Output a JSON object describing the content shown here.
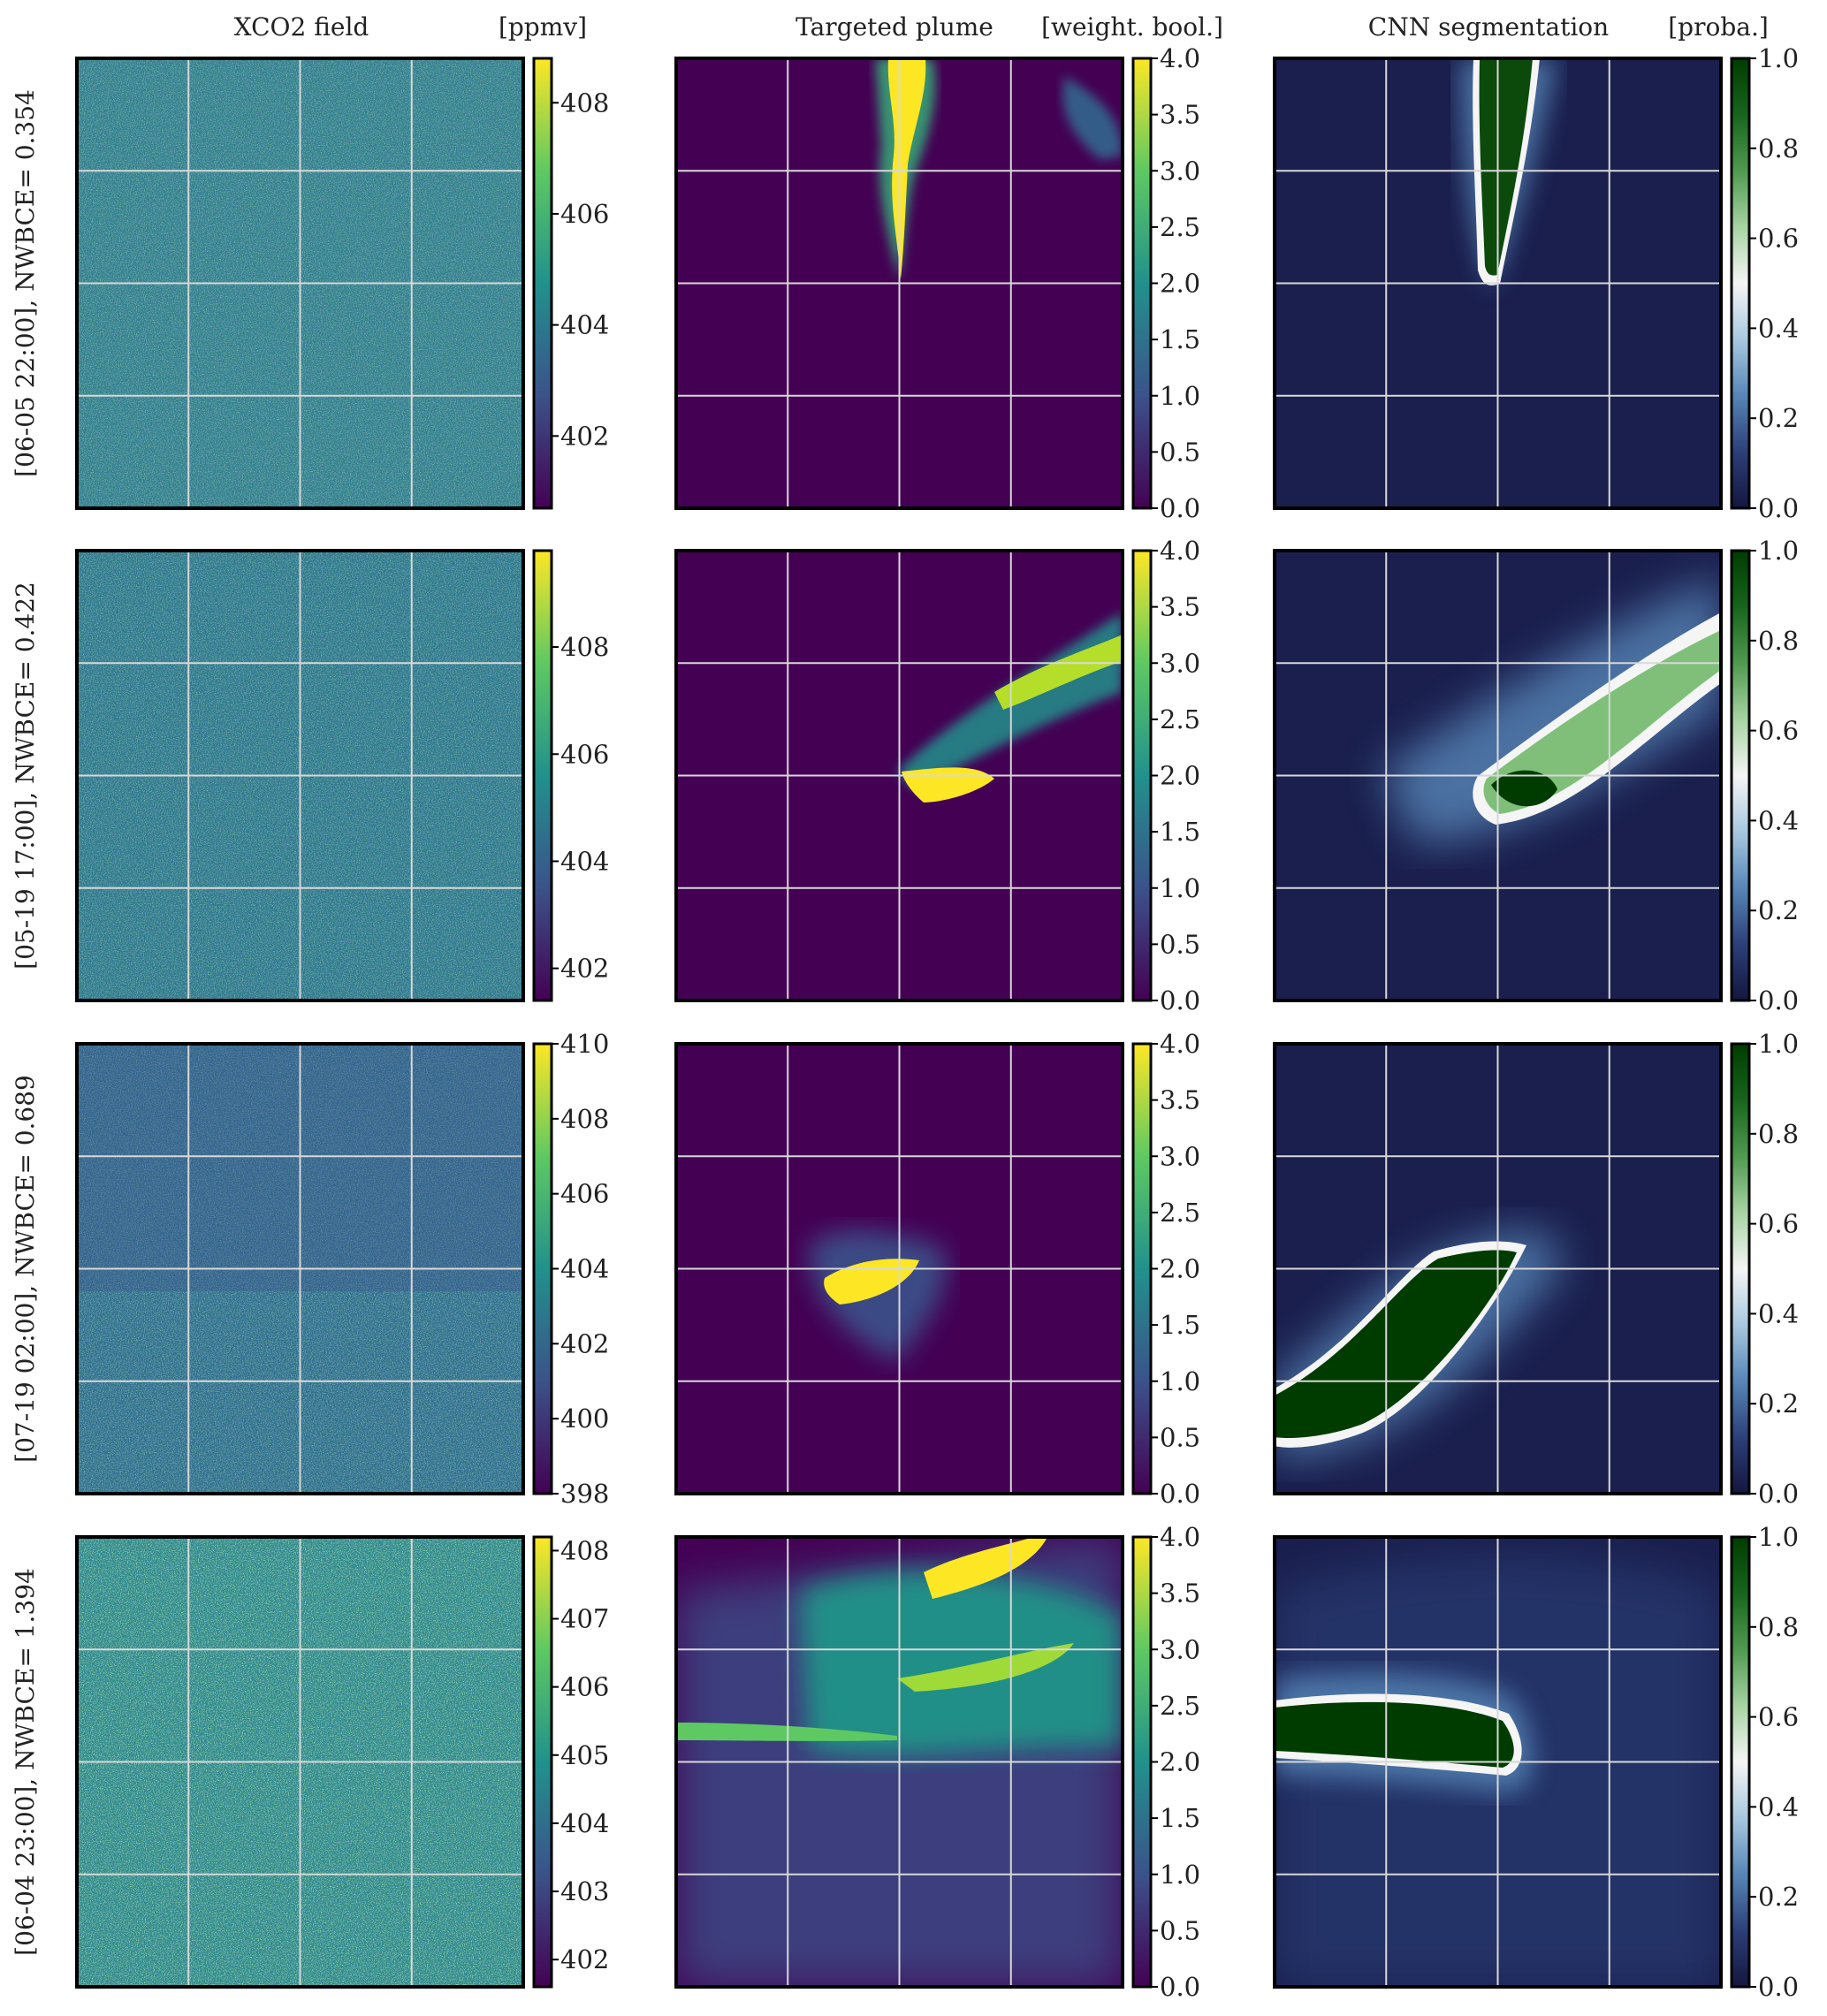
{
  "columns": [
    {
      "title": "XCO2 field",
      "unit": "[ppmv]",
      "colormap": "viridis"
    },
    {
      "title": "Targeted plume",
      "unit": "[weight. bool.]",
      "colormap": "viridis"
    },
    {
      "title": "CNN segmentation",
      "unit": "[proba.]",
      "colormap": "blue-white-green"
    }
  ],
  "colormaps": {
    "viridis": [
      "#440154",
      "#3b528b",
      "#21918c",
      "#5ec962",
      "#fde725"
    ],
    "blue-white-green": [
      "#14163f",
      "#2c3f78",
      "#5686b7",
      "#a8c8e0",
      "#f5f5f5",
      "#a7d3a3",
      "#4f9a4f",
      "#17651d",
      "#003c00"
    ]
  },
  "rows": [
    {
      "label": "[06-05 22:00], NWBCE= 0.354",
      "xco2_ticks": [
        "402",
        "404",
        "406",
        "408"
      ],
      "xco2_range": [
        400.7,
        408.8
      ],
      "plume_ticks": [
        "0.0",
        "0.5",
        "1.0",
        "1.5",
        "2.0",
        "2.5",
        "3.0",
        "3.5",
        "4.0"
      ],
      "seg_ticks": [
        "0.0",
        "0.2",
        "0.4",
        "0.6",
        "0.8",
        "1.0"
      ]
    },
    {
      "label": "[05-19 17:00], NWBCE= 0.422",
      "xco2_ticks": [
        "402",
        "404",
        "406",
        "408"
      ],
      "xco2_range": [
        401.4,
        409.8
      ],
      "plume_ticks": [
        "0.0",
        "0.5",
        "1.0",
        "1.5",
        "2.0",
        "2.5",
        "3.0",
        "3.5",
        "4.0"
      ],
      "seg_ticks": [
        "0.0",
        "0.2",
        "0.4",
        "0.6",
        "0.8",
        "1.0"
      ]
    },
    {
      "label": "[07-19 02:00], NWBCE= 0.689",
      "xco2_ticks": [
        "398",
        "400",
        "402",
        "404",
        "406",
        "408",
        "410"
      ],
      "xco2_range": [
        398.0,
        410.0
      ],
      "plume_ticks": [
        "0.0",
        "0.5",
        "1.0",
        "1.5",
        "2.0",
        "2.5",
        "3.0",
        "3.5",
        "4.0"
      ],
      "seg_ticks": [
        "0.0",
        "0.2",
        "0.4",
        "0.6",
        "0.8",
        "1.0"
      ]
    },
    {
      "label": "[06-04 23:00], NWBCE= 1.394",
      "xco2_ticks": [
        "402",
        "403",
        "404",
        "405",
        "406",
        "407",
        "408"
      ],
      "xco2_range": [
        401.6,
        408.2
      ],
      "plume_ticks": [
        "0.0",
        "0.5",
        "1.0",
        "1.5",
        "2.0",
        "2.5",
        "3.0",
        "3.5",
        "4.0"
      ],
      "seg_ticks": [
        "0.0",
        "0.2",
        "0.4",
        "0.6",
        "0.8",
        "1.0"
      ]
    }
  ],
  "chart_data": {
    "type": "heatmap",
    "panels_per_row": 3,
    "row_count": 4,
    "grid": true,
    "colorbar_ranges": {
      "xco2": [
        [
          400.7,
          408.8
        ],
        [
          401.4,
          409.8
        ],
        [
          398.0,
          410.0
        ],
        [
          401.6,
          408.2
        ]
      ],
      "plume": [
        0.0,
        4.0
      ],
      "segmentation": [
        0.0,
        1.0
      ]
    },
    "nwbce": [
      0.354,
      0.422,
      0.689,
      1.394
    ],
    "timestamps": [
      "06-05 22:00",
      "05-19 17:00",
      "07-19 02:00",
      "06-04 23:00"
    ]
  }
}
